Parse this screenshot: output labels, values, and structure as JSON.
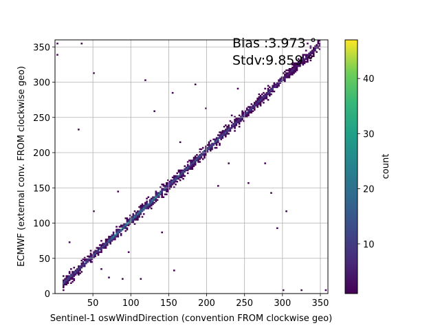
{
  "chart_data": {
    "type": "heatmap",
    "xlabel": "Sentinel-1 oswWindDirection (convention FROM clockwise geo)",
    "ylabel": "ECMWF (external conv. FROM clockwise geo)",
    "xlim": [
      0,
      360
    ],
    "ylim": [
      0,
      360
    ],
    "xticks": [
      50,
      100,
      150,
      200,
      250,
      300,
      350
    ],
    "yticks": [
      0,
      50,
      100,
      150,
      200,
      250,
      300,
      350
    ],
    "grid": true,
    "colormap": "viridis",
    "colorbar": {
      "label": "count",
      "min": 1,
      "max": 47,
      "ticks": [
        10,
        20,
        30,
        40
      ]
    },
    "annotations": [
      "Bias :3.973 °",
      "Stdv:9.859 °"
    ],
    "bin_size": 2,
    "diagonal_core": [
      {
        "x_start": 10,
        "x_end": 70,
        "count": 12
      },
      {
        "x_start": 70,
        "x_end": 140,
        "count": 22
      },
      {
        "x_start": 140,
        "x_end": 230,
        "count": 14
      },
      {
        "x_start": 230,
        "x_end": 300,
        "count": 10
      },
      {
        "x_start": 300,
        "x_end": 350,
        "count": 6
      }
    ],
    "outliers": [
      {
        "x": 2,
        "y": 354,
        "count": 1
      },
      {
        "x": 2,
        "y": 338,
        "count": 1
      },
      {
        "x": 34,
        "y": 354,
        "count": 1
      },
      {
        "x": 50,
        "y": 312,
        "count": 1
      },
      {
        "x": 118,
        "y": 302,
        "count": 1
      },
      {
        "x": 154,
        "y": 284,
        "count": 1
      },
      {
        "x": 30,
        "y": 232,
        "count": 1
      },
      {
        "x": 184,
        "y": 296,
        "count": 1
      },
      {
        "x": 198,
        "y": 262,
        "count": 1
      },
      {
        "x": 232,
        "y": 252,
        "count": 1
      },
      {
        "x": 292,
        "y": 92,
        "count": 1
      },
      {
        "x": 324,
        "y": 4,
        "count": 1
      },
      {
        "x": 300,
        "y": 4,
        "count": 1
      },
      {
        "x": 82,
        "y": 144,
        "count": 1
      },
      {
        "x": 112,
        "y": 20,
        "count": 1
      },
      {
        "x": 88,
        "y": 20,
        "count": 1
      },
      {
        "x": 228,
        "y": 184,
        "count": 1
      },
      {
        "x": 254,
        "y": 156,
        "count": 1
      },
      {
        "x": 284,
        "y": 142,
        "count": 1
      },
      {
        "x": 50,
        "y": 116,
        "count": 1
      },
      {
        "x": 18,
        "y": 72,
        "count": 1
      },
      {
        "x": 156,
        "y": 32,
        "count": 1
      },
      {
        "x": 360,
        "y": 4,
        "count": 2
      },
      {
        "x": 356,
        "y": 4,
        "count": 1
      },
      {
        "x": 276,
        "y": 184,
        "count": 1
      },
      {
        "x": 304,
        "y": 116,
        "count": 1
      },
      {
        "x": 332,
        "y": 354,
        "count": 1
      },
      {
        "x": 346,
        "y": 354,
        "count": 1
      },
      {
        "x": 240,
        "y": 290,
        "count": 1
      },
      {
        "x": 130,
        "y": 258,
        "count": 1
      },
      {
        "x": 60,
        "y": 34,
        "count": 1
      },
      {
        "x": 70,
        "y": 22,
        "count": 1
      },
      {
        "x": 164,
        "y": 214,
        "count": 1
      },
      {
        "x": 214,
        "y": 152,
        "count": 1
      },
      {
        "x": 140,
        "y": 86,
        "count": 1
      },
      {
        "x": 96,
        "y": 58,
        "count": 1
      }
    ]
  }
}
